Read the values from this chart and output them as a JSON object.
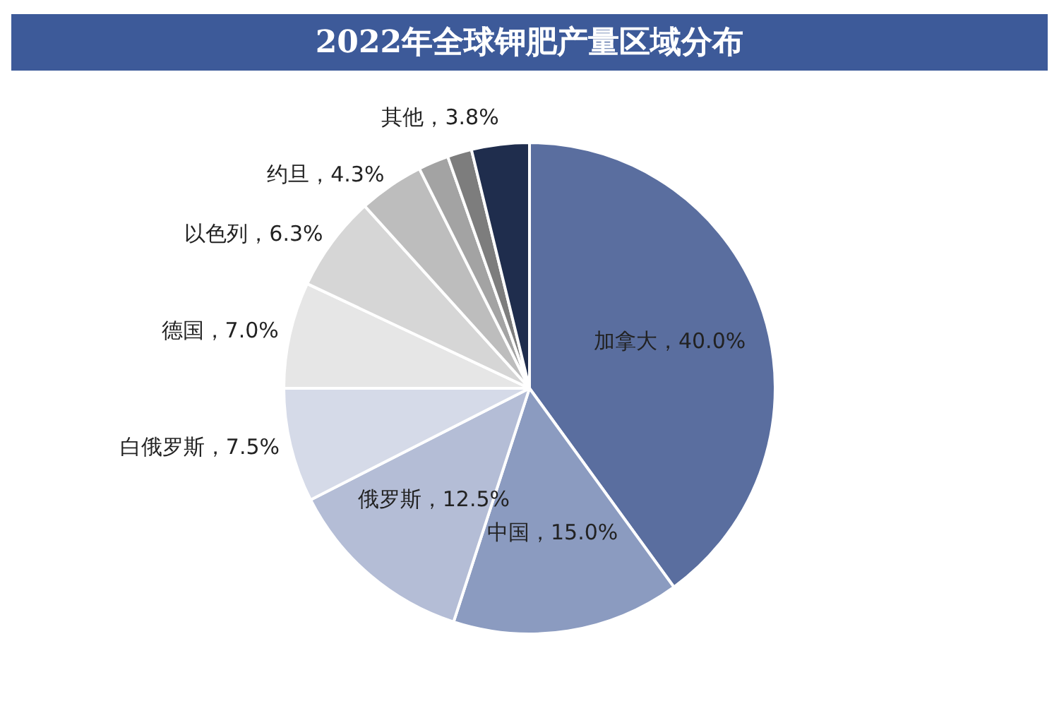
{
  "chart_data": {
    "type": "pie",
    "title": "2022年全球钾肥产量区域分布",
    "categories": [
      "加拿大",
      "中国",
      "俄罗斯",
      "白俄罗斯",
      "德国",
      "以色列",
      "约旦",
      null,
      null,
      "其他"
    ],
    "values": [
      40.0,
      15.0,
      12.5,
      7.5,
      7.0,
      6.3,
      4.3,
      2.0,
      1.6,
      3.8
    ],
    "value_labels": [
      "40.0%",
      "15.0%",
      "12.5%",
      "7.5%",
      "7.0%",
      "6.3%",
      "4.3%",
      null,
      null,
      "3.8%"
    ],
    "colors": [
      "#5a6e9f",
      "#8b9bc0",
      "#b4bdd6",
      "#d5dae8",
      "#e6e6e6",
      "#d6d6d6",
      "#bdbdbd",
      "#a3a3a3",
      "#7d7d7d",
      "#1f2d4d"
    ],
    "legend": false
  }
}
